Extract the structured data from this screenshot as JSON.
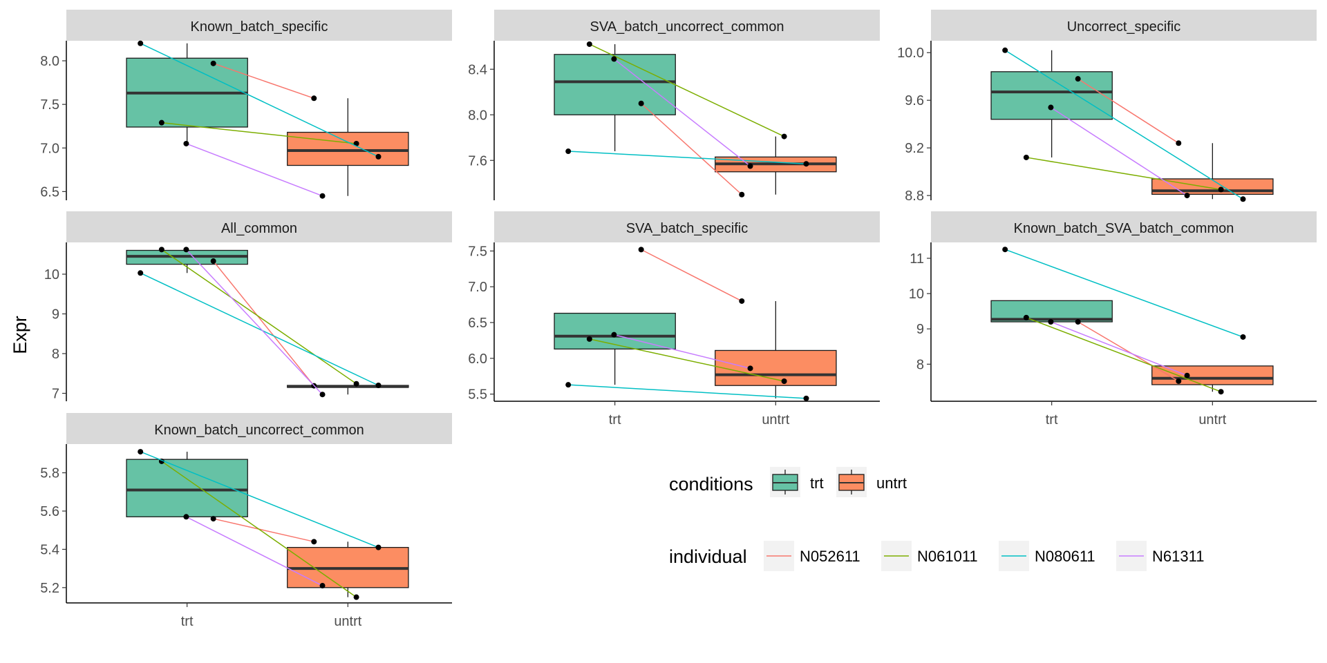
{
  "chart_data": {
    "type": "box",
    "ylabel": "Expr",
    "x_categories": [
      "trt",
      "untrt"
    ],
    "colors": {
      "trt": "#66C2A5",
      "untrt": "#FC8D62",
      "N052611": "#F8766D",
      "N061011": "#7CAE00",
      "N080611": "#00BFC4",
      "N61311": "#C77CFF",
      "strip_bg": "#D9D9D9"
    },
    "legend": {
      "conditions": {
        "title": "conditions",
        "items": [
          "trt",
          "untrt"
        ]
      },
      "individual": {
        "title": "individual",
        "items": [
          "N052611",
          "N061011",
          "N080611",
          "N61311"
        ]
      }
    },
    "panels": [
      {
        "title": "Known_batch_specific",
        "ylim": [
          6.4,
          8.23
        ],
        "yticks": [
          6.5,
          7.0,
          7.5,
          8.0
        ],
        "ytick_labels": [
          "6.5",
          "7.0",
          "7.5",
          "8.0"
        ],
        "boxes": {
          "trt": {
            "q1": 7.24,
            "median": 7.63,
            "q3": 8.03,
            "whisker_low": 7.05,
            "whisker_high": 8.2
          },
          "untrt": {
            "q1": 6.8,
            "median": 6.97,
            "q3": 7.18,
            "whisker_low": 6.45,
            "whisker_high": 7.57
          }
        },
        "series": [
          {
            "name": "N052611",
            "trt": 7.97,
            "untrt": 7.57
          },
          {
            "name": "N061011",
            "trt": 7.29,
            "untrt": 7.05
          },
          {
            "name": "N080611",
            "trt": 8.2,
            "untrt": 6.9
          },
          {
            "name": "N61311",
            "trt": 7.05,
            "untrt": 6.45
          }
        ]
      },
      {
        "title": "SVA_batch_uncorrect_common",
        "ylim": [
          7.25,
          8.65
        ],
        "yticks": [
          7.6,
          8.0,
          8.4
        ],
        "ytick_labels": [
          "7.6",
          "8.0",
          "8.4"
        ],
        "boxes": {
          "trt": {
            "q1": 8.0,
            "median": 8.29,
            "q3": 8.53,
            "whisker_low": 7.68,
            "whisker_high": 8.62
          },
          "untrt": {
            "q1": 7.5,
            "median": 7.57,
            "q3": 7.63,
            "whisker_low": 7.3,
            "whisker_high": 7.81
          }
        },
        "series": [
          {
            "name": "N052611",
            "trt": 8.1,
            "untrt": 7.3
          },
          {
            "name": "N061011",
            "trt": 8.62,
            "untrt": 7.81
          },
          {
            "name": "N080611",
            "trt": 7.68,
            "untrt": 7.57
          },
          {
            "name": "N61311",
            "trt": 8.49,
            "untrt": 7.55
          }
        ]
      },
      {
        "title": "Uncorrect_specific",
        "ylim": [
          8.76,
          10.1
        ],
        "yticks": [
          8.8,
          9.2,
          9.6,
          10.0
        ],
        "ytick_labels": [
          "8.8",
          "9.2",
          "9.6",
          "10.0"
        ],
        "boxes": {
          "trt": {
            "q1": 9.44,
            "median": 9.67,
            "q3": 9.84,
            "whisker_low": 9.12,
            "whisker_high": 10.02
          },
          "untrt": {
            "q1": 8.81,
            "median": 8.84,
            "q3": 8.94,
            "whisker_low": 8.77,
            "whisker_high": 9.24
          }
        },
        "series": [
          {
            "name": "N052611",
            "trt": 9.78,
            "untrt": 9.24
          },
          {
            "name": "N061011",
            "trt": 9.12,
            "untrt": 8.85
          },
          {
            "name": "N080611",
            "trt": 10.02,
            "untrt": 8.77
          },
          {
            "name": "N61311",
            "trt": 9.54,
            "untrt": 8.8
          }
        ]
      },
      {
        "title": "All_common",
        "ylim": [
          6.8,
          10.8
        ],
        "yticks": [
          7,
          8,
          9,
          10
        ],
        "ytick_labels": [
          "7",
          "8",
          "9",
          "10"
        ],
        "boxes": {
          "trt": {
            "q1": 10.25,
            "median": 10.45,
            "q3": 10.6,
            "whisker_low": 10.03,
            "whisker_high": 10.62
          },
          "untrt": {
            "q1": 7.15,
            "median": 7.17,
            "q3": 7.2,
            "whisker_low": 6.97,
            "whisker_high": 7.2
          }
        },
        "series": [
          {
            "name": "N052611",
            "trt": 10.33,
            "untrt": 7.19
          },
          {
            "name": "N061011",
            "trt": 10.62,
            "untrt": 7.24
          },
          {
            "name": "N080611",
            "trt": 10.03,
            "untrt": 7.2
          },
          {
            "name": "N61311",
            "trt": 10.62,
            "untrt": 6.97
          }
        ]
      },
      {
        "title": "SVA_batch_specific",
        "ylim": [
          5.4,
          7.62
        ],
        "yticks": [
          5.5,
          6.0,
          6.5,
          7.0,
          7.5
        ],
        "ytick_labels": [
          "5.5",
          "6.0",
          "6.5",
          "7.0",
          "7.5"
        ],
        "boxes": {
          "trt": {
            "q1": 6.13,
            "median": 6.31,
            "q3": 6.63,
            "whisker_low": 5.63,
            "whisker_high": 6.63
          },
          "untrt": {
            "q1": 5.62,
            "median": 5.77,
            "q3": 6.11,
            "whisker_low": 5.44,
            "whisker_high": 6.8
          }
        },
        "series": [
          {
            "name": "N052611",
            "trt": 7.52,
            "untrt": 6.8
          },
          {
            "name": "N061011",
            "trt": 6.27,
            "untrt": 5.68
          },
          {
            "name": "N080611",
            "trt": 5.63,
            "untrt": 5.44
          },
          {
            "name": "N61311",
            "trt": 6.33,
            "untrt": 5.86
          }
        ]
      },
      {
        "title": "Known_batch_SVA_batch_common",
        "ylim": [
          6.95,
          11.45
        ],
        "yticks": [
          8,
          9,
          10,
          11
        ],
        "ytick_labels": [
          "8",
          "9",
          "10",
          "11"
        ],
        "boxes": {
          "trt": {
            "q1": 9.2,
            "median": 9.27,
            "q3": 9.8,
            "whisker_low": 9.2,
            "whisker_high": 9.8
          },
          "untrt": {
            "q1": 7.42,
            "median": 7.6,
            "q3": 7.95,
            "whisker_low": 7.22,
            "whisker_high": 7.95
          }
        },
        "series": [
          {
            "name": "N052611",
            "trt": 9.2,
            "untrt": 7.52
          },
          {
            "name": "N061011",
            "trt": 9.32,
            "untrt": 7.22
          },
          {
            "name": "N080611",
            "trt": 11.25,
            "untrt": 8.77
          },
          {
            "name": "N61311",
            "trt": 9.2,
            "untrt": 7.68
          }
        ]
      },
      {
        "title": "Known_batch_uncorrect_common",
        "ylim": [
          5.12,
          5.95
        ],
        "yticks": [
          5.2,
          5.4,
          5.6,
          5.8
        ],
        "ytick_labels": [
          "5.2",
          "5.4",
          "5.6",
          "5.8"
        ],
        "boxes": {
          "trt": {
            "q1": 5.57,
            "median": 5.71,
            "q3": 5.87,
            "whisker_low": 5.57,
            "whisker_high": 5.91
          },
          "untrt": {
            "q1": 5.2,
            "median": 5.3,
            "q3": 5.41,
            "whisker_low": 5.15,
            "whisker_high": 5.44
          }
        },
        "series": [
          {
            "name": "N052611",
            "trt": 5.56,
            "untrt": 5.44
          },
          {
            "name": "N061011",
            "trt": 5.86,
            "untrt": 5.15
          },
          {
            "name": "N080611",
            "trt": 5.91,
            "untrt": 5.41
          },
          {
            "name": "N61311",
            "trt": 5.57,
            "untrt": 5.21
          }
        ]
      }
    ]
  }
}
